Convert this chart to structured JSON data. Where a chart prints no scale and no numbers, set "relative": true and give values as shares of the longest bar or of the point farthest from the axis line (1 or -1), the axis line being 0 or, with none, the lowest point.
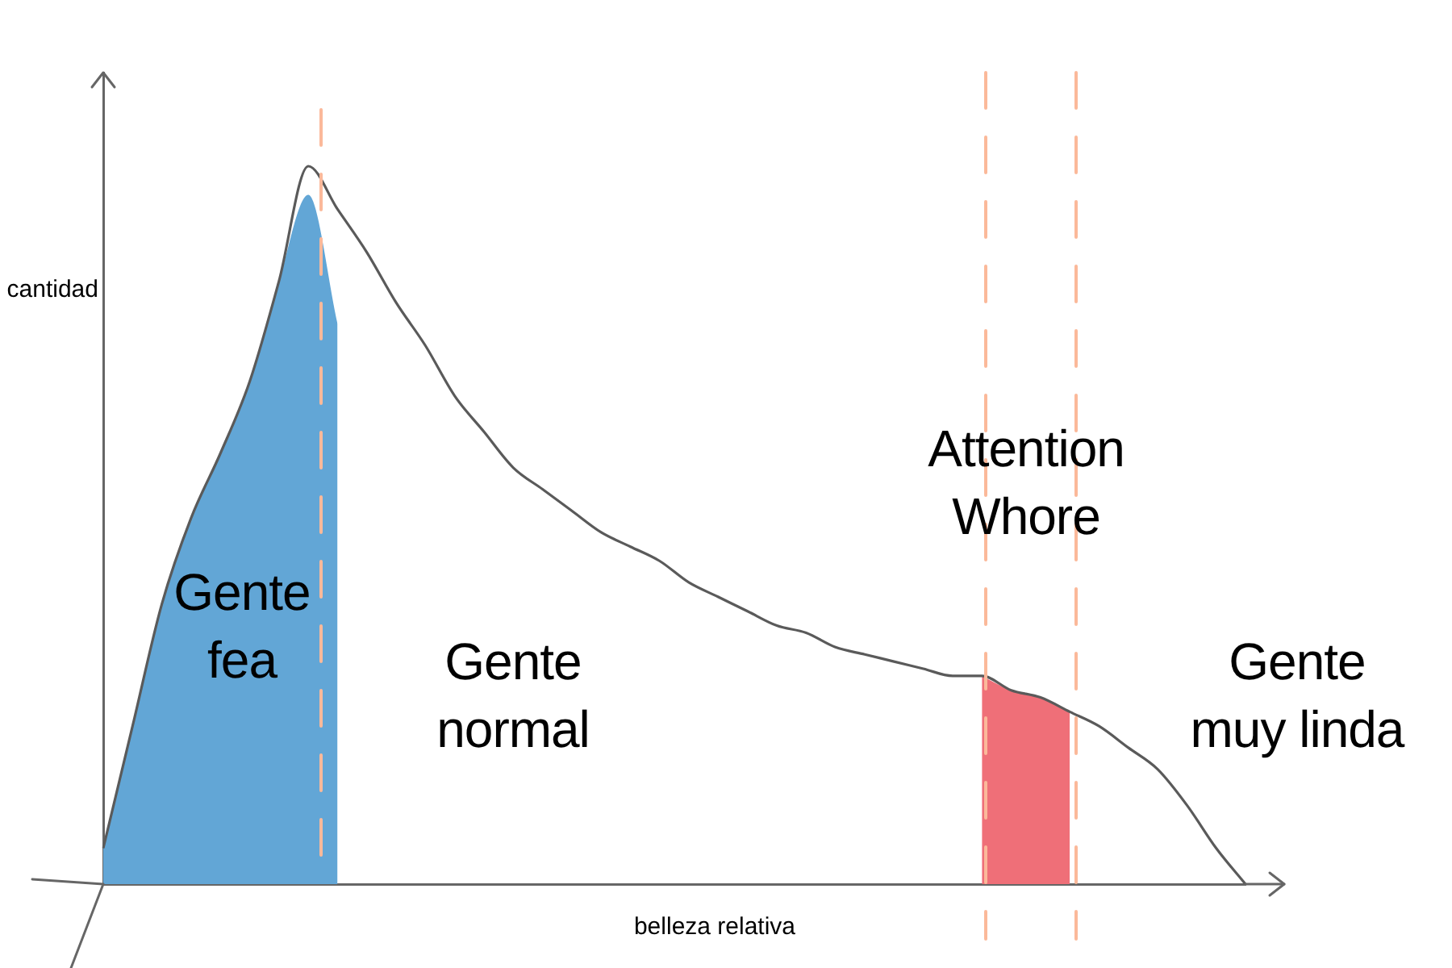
{
  "chart_data": {
    "type": "line",
    "xlabel": "belleza relativa",
    "ylabel": "cantidad",
    "relative": true,
    "categories": [
      null,
      null,
      null,
      null,
      null,
      null,
      null,
      null,
      null,
      null,
      null,
      null,
      null,
      null,
      null,
      null,
      null,
      null,
      null,
      null,
      null,
      null,
      null,
      null,
      null,
      null,
      null,
      null,
      null,
      null,
      null,
      null,
      null,
      null,
      null,
      null,
      null,
      null,
      null,
      null
    ],
    "series": [
      {
        "color": "#5a5a5a",
        "values": [
          0.05,
          0.22,
          0.39,
          0.51,
          0.6,
          0.7,
          0.84,
          1.0,
          0.94,
          0.88,
          0.81,
          0.75,
          0.68,
          0.63,
          0.58,
          0.55,
          0.52,
          0.49,
          0.47,
          0.45,
          0.42,
          0.4,
          0.38,
          0.36,
          0.35,
          0.33,
          0.32,
          0.31,
          0.3,
          0.29,
          0.29,
          0.27,
          0.26,
          0.24,
          0.22,
          0.19,
          0.16,
          0.11,
          0.05,
          0
        ]
      },
      {
        "type": "area",
        "color": "#62a6d6",
        "values": [
          0.05,
          0.22,
          0.39,
          0.51,
          0.6,
          0.7,
          0.84,
          0.96,
          0.78,
          null,
          null,
          null,
          null,
          null,
          null,
          null,
          null,
          null,
          null,
          null,
          null,
          null,
          null,
          null,
          null,
          null,
          null,
          null,
          null,
          null,
          null,
          null,
          null,
          null,
          null,
          null,
          null,
          null,
          null,
          null
        ]
      },
      {
        "type": "area",
        "color": "#ef6f78",
        "values": [
          null,
          null,
          null,
          null,
          null,
          null,
          null,
          null,
          null,
          null,
          null,
          null,
          null,
          null,
          null,
          null,
          null,
          null,
          null,
          null,
          null,
          null,
          null,
          null,
          null,
          null,
          null,
          null,
          null,
          null,
          0.29,
          0.27,
          0.26,
          0.24,
          null,
          null,
          null,
          null,
          null,
          null
        ]
      }
    ],
    "annotations": [
      "Gente fea",
      "Gente normal",
      "Attention Whore",
      "Gente muy linda"
    ],
    "grid": false,
    "legend": false,
    "marker": "none"
  }
}
